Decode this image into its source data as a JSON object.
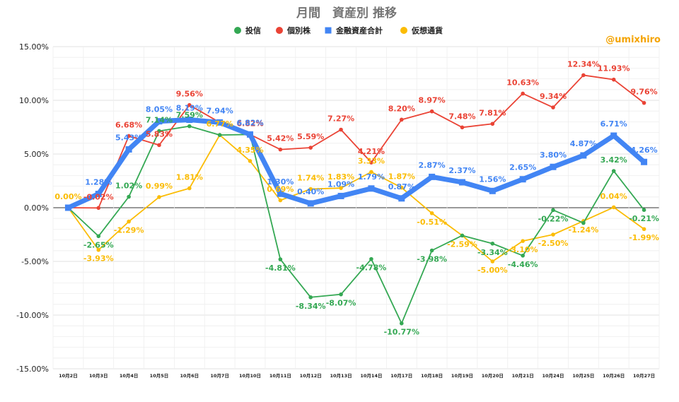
{
  "chart_data": {
    "type": "line",
    "title": "月間　資産別 推移",
    "watermark": "@umixhiro",
    "legend_position": "top",
    "grid": true,
    "ylim": [
      -15,
      15
    ],
    "y_ticks": [
      "15.00%",
      "10.00%",
      "5.00%",
      "0.00%",
      "-5.00%",
      "-10.00%",
      "-15.00%"
    ],
    "categories": [
      "10月2日",
      "10月3日",
      "10月4日",
      "10月5日",
      "10月6日",
      "10月7日",
      "10月10日",
      "10月11日",
      "10月12日",
      "10月13日",
      "10月14日",
      "10月17日",
      "10月18日",
      "10月19日",
      "10月20日",
      "10月21日",
      "10月24日",
      "10月25日",
      "10月26日",
      "10月27日"
    ],
    "series": [
      {
        "name": "投信",
        "color": "#34a853",
        "values": [
          0,
          -2.65,
          1.02,
          7.14,
          7.59,
          6.77,
          6.82,
          -4.81,
          -8.34,
          -8.07,
          -4.78,
          -10.77,
          -3.98,
          -2.59,
          -3.34,
          -4.46,
          -0.22,
          -1.42,
          3.42,
          -0.21
        ],
        "labels": [
          "",
          "-2.65%",
          "1.02%",
          "7.14%",
          "7.59%",
          "",
          "",
          "-4.81%",
          "-8.34%",
          "-8.07%",
          "-4.78%",
          "-10.77%",
          "-3.98%",
          "",
          "-3.34%",
          "-4.46%",
          "-0.22%",
          "",
          "3.42%",
          "-0.21%"
        ]
      },
      {
        "name": "個別株",
        "color": "#ea4335",
        "values": [
          0,
          -0.02,
          6.68,
          5.83,
          9.56,
          7.94,
          6.82,
          5.42,
          5.59,
          7.27,
          4.21,
          8.2,
          8.97,
          7.48,
          7.81,
          10.63,
          9.34,
          12.34,
          11.93,
          9.76
        ],
        "labels": [
          "",
          "-0.02%",
          "6.68%",
          "5.83%",
          "9.56%",
          "",
          "6.82%",
          "5.42%",
          "5.59%",
          "7.27%",
          "4.21%",
          "8.20%",
          "8.97%",
          "7.48%",
          "7.81%",
          "10.63%",
          "9.34%",
          "12.34%",
          "11.93%",
          "9.76%"
        ]
      },
      {
        "name": "金融資産合計",
        "color": "#4285f4",
        "values": [
          0,
          1.28,
          5.43,
          8.05,
          8.19,
          7.94,
          6.82,
          1.3,
          0.4,
          1.09,
          1.79,
          0.87,
          2.87,
          2.37,
          1.56,
          2.65,
          3.8,
          4.87,
          6.71,
          4.26
        ],
        "labels": [
          "",
          "1.28%",
          "5.43%",
          "8.05%",
          "8.19%",
          "7.94%",
          "6.82%",
          "1.30%",
          "0.40%",
          "1.09%",
          "1.79%",
          "0.87%",
          "2.87%",
          "2.37%",
          "1.56%",
          "2.65%",
          "3.80%",
          "4.87%",
          "6.71%",
          "4.26%"
        ]
      },
      {
        "name": "仮想通貨",
        "color": "#fbbc04",
        "values": [
          0,
          -3.93,
          -1.29,
          0.99,
          1.81,
          6.77,
          4.35,
          0.69,
          1.74,
          1.83,
          3.33,
          1.87,
          -0.51,
          -2.59,
          -5.0,
          -3.1,
          -2.5,
          -1.24,
          0.04,
          -1.99
        ],
        "labels": [
          "0.00%",
          "-3.93%",
          "-1.29%",
          "0.99%",
          "1.81%",
          "6.77%",
          "4.35%",
          "0.69%",
          "1.74%",
          "1.83%",
          "3.33%",
          "1.87%",
          "-0.51%",
          "-2.59%",
          "-5.00%",
          "-3.10%",
          "-2.50%",
          "-1.24%",
          "0.04%",
          "-1.99%"
        ]
      }
    ]
  }
}
